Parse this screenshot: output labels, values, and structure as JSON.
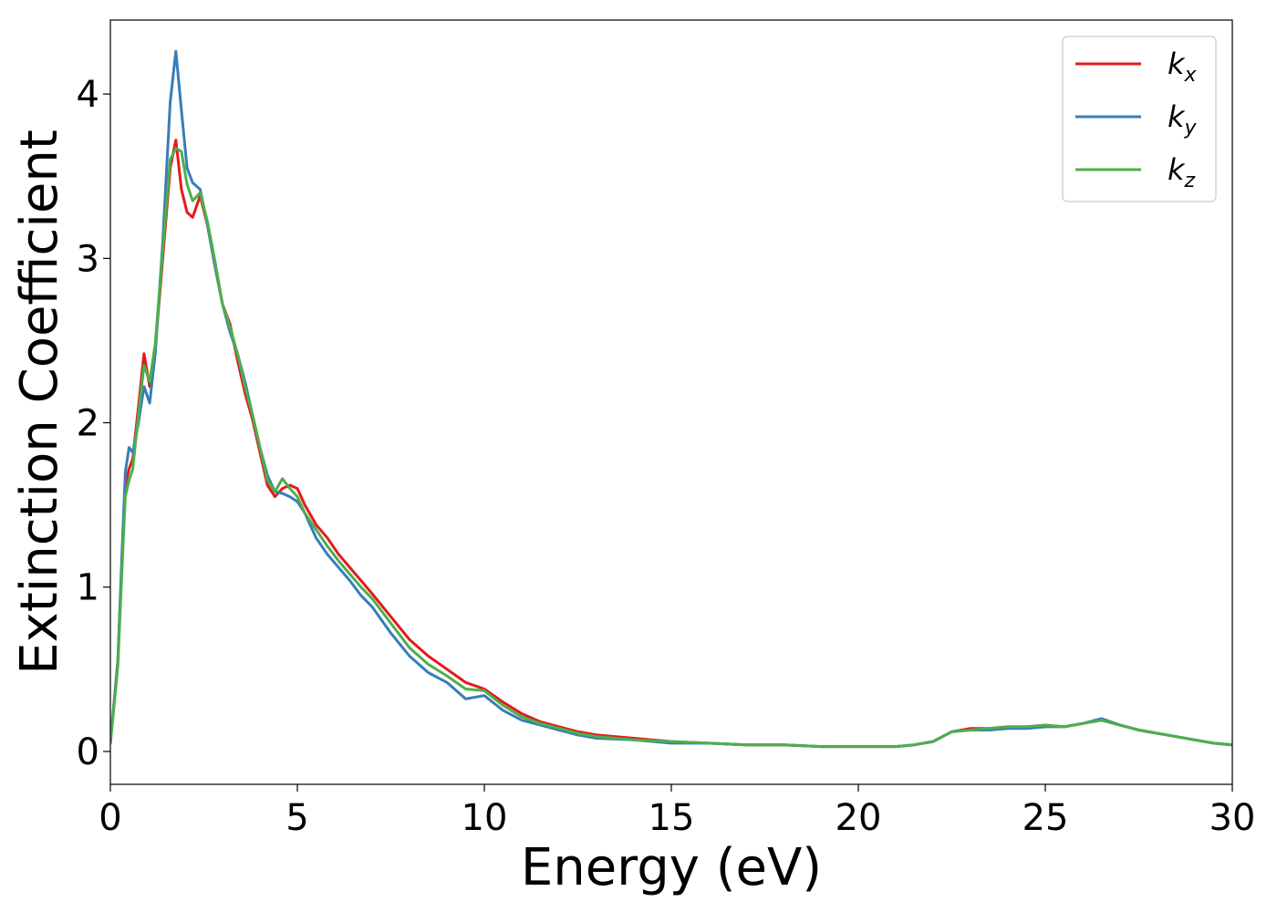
{
  "chart_data": {
    "type": "line",
    "xlabel": "Energy (eV)",
    "ylabel": "Extinction Coefficient",
    "xlim": [
      0,
      30
    ],
    "ylim": [
      -0.2,
      4.45
    ],
    "xticks": [
      0,
      5,
      10,
      15,
      20,
      25,
      30
    ],
    "yticks": [
      0,
      1,
      2,
      3,
      4
    ],
    "grid": false,
    "legend_position": "top-right",
    "series": [
      {
        "name": "k_x",
        "label_base": "k",
        "label_sub": "x",
        "color": "#e41a1c",
        "x": [
          0,
          0.1,
          0.2,
          0.3,
          0.4,
          0.5,
          0.6,
          0.75,
          0.9,
          1.05,
          1.2,
          1.4,
          1.6,
          1.75,
          1.9,
          2.05,
          2.2,
          2.4,
          2.6,
          2.8,
          3.0,
          3.2,
          3.4,
          3.6,
          3.8,
          4.0,
          4.2,
          4.4,
          4.6,
          4.8,
          5.0,
          5.2,
          5.5,
          5.8,
          6.1,
          6.4,
          6.7,
          7.0,
          7.5,
          8.0,
          8.5,
          9.0,
          9.5,
          10.0,
          10.5,
          11.0,
          11.5,
          12.0,
          12.5,
          13.0,
          14.0,
          15.0,
          16.0,
          17.0,
          18.0,
          19.0,
          20.0,
          21.0,
          21.5,
          22.0,
          22.5,
          23.0,
          23.5,
          24.0,
          24.5,
          25.0,
          25.5,
          26.0,
          26.5,
          27.0,
          27.5,
          28.0,
          28.5,
          29.0,
          29.5,
          30.0
        ],
        "y": [
          0.05,
          0.3,
          0.55,
          1.1,
          1.62,
          1.72,
          1.78,
          2.1,
          2.42,
          2.22,
          2.45,
          3.0,
          3.55,
          3.72,
          3.42,
          3.28,
          3.25,
          3.38,
          3.2,
          2.95,
          2.72,
          2.6,
          2.38,
          2.18,
          2.02,
          1.82,
          1.62,
          1.55,
          1.6,
          1.62,
          1.6,
          1.5,
          1.38,
          1.3,
          1.2,
          1.12,
          1.04,
          0.96,
          0.82,
          0.68,
          0.58,
          0.5,
          0.42,
          0.38,
          0.3,
          0.23,
          0.18,
          0.15,
          0.12,
          0.1,
          0.08,
          0.06,
          0.05,
          0.04,
          0.04,
          0.03,
          0.03,
          0.03,
          0.04,
          0.06,
          0.12,
          0.14,
          0.14,
          0.15,
          0.15,
          0.16,
          0.15,
          0.17,
          0.19,
          0.16,
          0.13,
          0.11,
          0.09,
          0.07,
          0.05,
          0.04
        ]
      },
      {
        "name": "k_y",
        "label_base": "k",
        "label_sub": "y",
        "color": "#377eb8",
        "x": [
          0,
          0.1,
          0.2,
          0.3,
          0.4,
          0.5,
          0.6,
          0.75,
          0.9,
          1.05,
          1.2,
          1.4,
          1.6,
          1.75,
          1.9,
          2.05,
          2.2,
          2.4,
          2.6,
          2.8,
          3.0,
          3.2,
          3.4,
          3.6,
          3.8,
          4.0,
          4.2,
          4.4,
          4.6,
          4.8,
          5.0,
          5.2,
          5.5,
          5.8,
          6.1,
          6.4,
          6.7,
          7.0,
          7.5,
          8.0,
          8.5,
          9.0,
          9.5,
          10.0,
          10.5,
          11.0,
          11.5,
          12.0,
          12.5,
          13.0,
          14.0,
          15.0,
          16.0,
          17.0,
          18.0,
          19.0,
          20.0,
          21.0,
          21.5,
          22.0,
          22.5,
          23.0,
          23.5,
          24.0,
          24.5,
          25.0,
          25.5,
          26.0,
          26.5,
          27.0,
          27.5,
          28.0,
          28.5,
          29.0,
          29.5,
          30.0
        ],
        "y": [
          0.05,
          0.3,
          0.55,
          1.15,
          1.7,
          1.85,
          1.82,
          2.0,
          2.22,
          2.12,
          2.42,
          3.1,
          3.95,
          4.26,
          3.9,
          3.55,
          3.46,
          3.42,
          3.2,
          2.95,
          2.72,
          2.55,
          2.42,
          2.25,
          2.05,
          1.85,
          1.68,
          1.58,
          1.57,
          1.55,
          1.52,
          1.45,
          1.3,
          1.2,
          1.12,
          1.04,
          0.95,
          0.88,
          0.72,
          0.58,
          0.48,
          0.42,
          0.32,
          0.34,
          0.25,
          0.19,
          0.16,
          0.13,
          0.1,
          0.08,
          0.07,
          0.05,
          0.05,
          0.04,
          0.04,
          0.03,
          0.03,
          0.03,
          0.04,
          0.06,
          0.12,
          0.13,
          0.13,
          0.14,
          0.14,
          0.15,
          0.15,
          0.17,
          0.2,
          0.16,
          0.13,
          0.11,
          0.09,
          0.07,
          0.05,
          0.04
        ]
      },
      {
        "name": "k_z",
        "label_base": "k",
        "label_sub": "z",
        "color": "#4daf4a",
        "x": [
          0,
          0.1,
          0.2,
          0.3,
          0.4,
          0.5,
          0.6,
          0.75,
          0.9,
          1.05,
          1.2,
          1.4,
          1.6,
          1.75,
          1.9,
          2.05,
          2.2,
          2.4,
          2.6,
          2.8,
          3.0,
          3.2,
          3.4,
          3.6,
          3.8,
          4.0,
          4.2,
          4.4,
          4.6,
          4.8,
          5.0,
          5.2,
          5.5,
          5.8,
          6.1,
          6.4,
          6.7,
          7.0,
          7.5,
          8.0,
          8.5,
          9.0,
          9.5,
          10.0,
          10.5,
          11.0,
          11.5,
          12.0,
          12.5,
          13.0,
          14.0,
          15.0,
          16.0,
          17.0,
          18.0,
          19.0,
          20.0,
          21.0,
          21.5,
          22.0,
          22.5,
          23.0,
          23.5,
          24.0,
          24.5,
          25.0,
          25.5,
          26.0,
          26.5,
          27.0,
          27.5,
          28.0,
          28.5,
          29.0,
          29.5,
          30.0
        ],
        "y": [
          0.05,
          0.28,
          0.52,
          1.05,
          1.55,
          1.65,
          1.72,
          2.05,
          2.35,
          2.25,
          2.48,
          3.05,
          3.6,
          3.67,
          3.65,
          3.45,
          3.35,
          3.4,
          3.22,
          2.98,
          2.72,
          2.58,
          2.42,
          2.22,
          2.05,
          1.85,
          1.65,
          1.58,
          1.66,
          1.6,
          1.55,
          1.45,
          1.35,
          1.25,
          1.16,
          1.08,
          1.0,
          0.93,
          0.78,
          0.63,
          0.53,
          0.46,
          0.38,
          0.37,
          0.28,
          0.21,
          0.17,
          0.14,
          0.11,
          0.09,
          0.07,
          0.06,
          0.05,
          0.04,
          0.04,
          0.03,
          0.03,
          0.03,
          0.04,
          0.06,
          0.12,
          0.13,
          0.14,
          0.15,
          0.15,
          0.16,
          0.15,
          0.17,
          0.19,
          0.16,
          0.13,
          0.11,
          0.09,
          0.07,
          0.05,
          0.04
        ]
      }
    ]
  }
}
